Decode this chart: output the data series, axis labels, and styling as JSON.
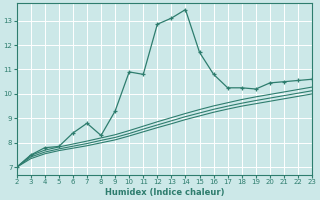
{
  "title": "",
  "xlabel": "Humidex (Indice chaleur)",
  "ylabel": "",
  "bg_color": "#cce8e8",
  "grid_color": "#ffffff",
  "line_color": "#2e7d6e",
  "xlim": [
    2,
    23
  ],
  "ylim": [
    6.7,
    13.7
  ],
  "yticks": [
    7,
    8,
    9,
    10,
    11,
    12,
    13
  ],
  "xticks": [
    2,
    3,
    4,
    5,
    6,
    7,
    8,
    9,
    10,
    11,
    12,
    13,
    14,
    15,
    16,
    17,
    18,
    19,
    20,
    21,
    22,
    23
  ],
  "main_x": [
    2,
    3,
    4,
    5,
    6,
    7,
    8,
    9,
    10,
    11,
    12,
    13,
    14,
    15,
    16,
    17,
    18,
    19,
    20,
    21,
    22,
    23
  ],
  "main_y": [
    7.0,
    7.5,
    7.8,
    7.85,
    8.4,
    8.8,
    8.3,
    9.3,
    10.9,
    10.8,
    12.85,
    13.1,
    13.45,
    11.7,
    10.8,
    10.25,
    10.25,
    10.2,
    10.45,
    10.5,
    10.55,
    10.6
  ],
  "line1_x": [
    2,
    3,
    4,
    5,
    6,
    7,
    8,
    9,
    10,
    11,
    12,
    13,
    14,
    15,
    16,
    17,
    18,
    19,
    20,
    21,
    22,
    23
  ],
  "line1_y": [
    7.0,
    7.35,
    7.55,
    7.68,
    7.78,
    7.88,
    8.0,
    8.12,
    8.28,
    8.45,
    8.62,
    8.78,
    8.95,
    9.1,
    9.25,
    9.38,
    9.5,
    9.6,
    9.7,
    9.8,
    9.9,
    10.0
  ],
  "line2_x": [
    2,
    3,
    4,
    5,
    6,
    7,
    8,
    9,
    10,
    11,
    12,
    13,
    14,
    15,
    16,
    17,
    18,
    19,
    20,
    21,
    22,
    23
  ],
  "line2_y": [
    7.0,
    7.42,
    7.62,
    7.75,
    7.86,
    7.97,
    8.1,
    8.22,
    8.38,
    8.56,
    8.73,
    8.9,
    9.07,
    9.22,
    9.37,
    9.5,
    9.62,
    9.73,
    9.83,
    9.93,
    10.03,
    10.13
  ],
  "line3_x": [
    2,
    3,
    4,
    5,
    6,
    7,
    8,
    9,
    10,
    11,
    12,
    13,
    14,
    15,
    16,
    17,
    18,
    19,
    20,
    21,
    22,
    23
  ],
  "line3_y": [
    7.0,
    7.48,
    7.7,
    7.83,
    7.95,
    8.07,
    8.2,
    8.33,
    8.5,
    8.68,
    8.86,
    9.03,
    9.2,
    9.36,
    9.51,
    9.64,
    9.77,
    9.88,
    9.98,
    10.08,
    10.18,
    10.28
  ]
}
